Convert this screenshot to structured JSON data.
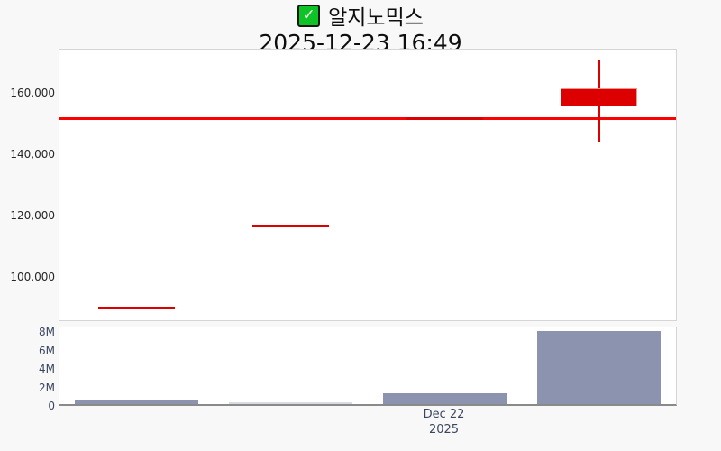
{
  "header": {
    "stock_name": "알지노믹스",
    "datetime": "2025-12-23 16:49",
    "checkbox_glyph": "✓",
    "checkbox_checked": true
  },
  "colors": {
    "candle_up": "#dd0000",
    "reference_line": "#ff0000",
    "volume_bar": "#8b93ae",
    "volume_bar_faint": "#d7dbe5",
    "background": "#f8f8f8",
    "plot_background": "#ffffff",
    "price_label": "#262626",
    "volume_label": "#3a4660",
    "checkbox_green": "#0ec325"
  },
  "chart_data": {
    "type": "candlestick",
    "title": "알지노믹스",
    "subtitle": "2025-12-23 16:49",
    "grid": false,
    "legend_position": "none",
    "price_axis": {
      "tick_values": [
        160000,
        140000,
        120000,
        100000
      ],
      "tick_labels": [
        "160,000",
        "140,000",
        "120,000",
        "100,000"
      ],
      "range": [
        86100,
        174500
      ]
    },
    "volume_axis": {
      "tick_values": [
        8000000,
        6000000,
        4000000,
        2000000,
        0
      ],
      "tick_labels": [
        "8M",
        "6M",
        "4M",
        "2M",
        "0"
      ],
      "range": [
        0,
        8400000
      ]
    },
    "x_label": {
      "text": "Dec 22",
      "year": "2025",
      "candle_index": 2
    },
    "reference_line_value": 152100,
    "candles": [
      {
        "open": 90000,
        "high": 90000,
        "low": 90000,
        "close": 90000,
        "volume": 500000
      },
      {
        "open": 117000,
        "high": 117000,
        "low": 117000,
        "close": 117000,
        "volume": 150000
      },
      {
        "open": 152100,
        "high": 152100,
        "low": 152100,
        "close": 152100,
        "volume": 1200000
      },
      {
        "open": 155900,
        "high": 171200,
        "low": 144400,
        "close": 161800,
        "volume": 7900000
      }
    ]
  }
}
